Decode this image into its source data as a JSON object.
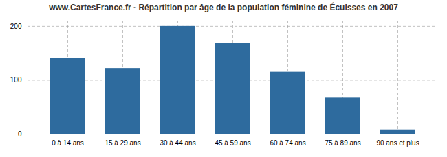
{
  "chart_data": {
    "type": "bar",
    "title": "www.CartesFrance.fr - Répartition par âge de la population féminine de Écuisses en 2007",
    "categories": [
      "0 à 14 ans",
      "15 à 29 ans",
      "30 à 44 ans",
      "45 à 59 ans",
      "60 à 74 ans",
      "75 à 89 ans",
      "90 ans et plus"
    ],
    "values": [
      140,
      122,
      200,
      168,
      115,
      67,
      8
    ],
    "color": "#2e6b9e",
    "ylim": [
      0,
      210
    ],
    "yticks": [
      0,
      100,
      200
    ],
    "grid": true
  }
}
